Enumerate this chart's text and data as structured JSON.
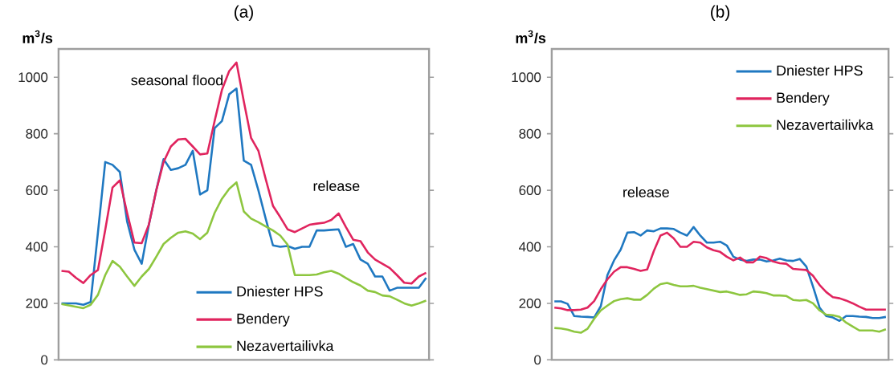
{
  "chart_data": [
    {
      "type": "line",
      "title": "(a)",
      "ylabel": "m$^{3}$/s",
      "annotations": [
        "seasonal flood",
        "release"
      ],
      "categories": [
        null,
        null,
        null,
        null,
        null,
        null,
        null,
        null,
        null,
        null,
        null,
        null,
        null,
        null,
        null,
        null,
        null,
        null,
        null,
        null,
        null,
        null,
        null,
        null,
        null,
        null,
        null,
        null,
        null,
        null,
        null,
        null,
        null,
        null,
        null,
        null,
        null,
        null,
        null,
        null,
        null,
        null,
        null,
        null,
        null,
        null,
        null,
        null,
        null,
        null,
        null
      ],
      "series": [
        {
          "name": "Dniester HPS",
          "color": "#1f78c1",
          "values": [
            200,
            200,
            200,
            195,
            205,
            450,
            700,
            690,
            665,
            490,
            390,
            340,
            480,
            600,
            710,
            672,
            678,
            690,
            740,
            585,
            600,
            820,
            845,
            940,
            960,
            705,
            690,
            600,
            500,
            405,
            400,
            403,
            393,
            400,
            400,
            458,
            458,
            460,
            462,
            400,
            410,
            355,
            340,
            295,
            295,
            245,
            255,
            255,
            255,
            255,
            290
          ]
        },
        {
          "name": "Bendery",
          "color": "#e0245e",
          "values": [
            315,
            312,
            290,
            272,
            300,
            318,
            460,
            610,
            635,
            520,
            415,
            413,
            480,
            600,
            700,
            755,
            780,
            782,
            755,
            727,
            730,
            845,
            955,
            1022,
            1052,
            915,
            785,
            740,
            640,
            545,
            505,
            462,
            452,
            465,
            478,
            482,
            485,
            495,
            518,
            470,
            425,
            420,
            380,
            355,
            340,
            325,
            300,
            273,
            270,
            295,
            308
          ]
        },
        {
          "name": "Nezavertailivka",
          "color": "#8dc63f",
          "values": [
            198,
            193,
            188,
            183,
            195,
            230,
            300,
            350,
            330,
            295,
            262,
            295,
            322,
            365,
            410,
            432,
            450,
            455,
            447,
            427,
            450,
            520,
            570,
            605,
            628,
            525,
            500,
            487,
            472,
            458,
            440,
            408,
            300,
            300,
            300,
            302,
            310,
            315,
            305,
            290,
            275,
            263,
            245,
            240,
            228,
            225,
            213,
            200,
            192,
            200,
            210
          ]
        }
      ],
      "ylim": [
        0,
        1100
      ],
      "yticks": [
        0,
        200,
        400,
        600,
        800,
        1000
      ],
      "tick_labels": "y",
      "legend": "bottom",
      "line_style": "solid",
      "marker": "none",
      "grid": false
    },
    {
      "type": "line",
      "title": "(b)",
      "ylabel": "m$^{3}$/s",
      "annotations": [
        "release"
      ],
      "categories": [
        null,
        null,
        null,
        null,
        null,
        null,
        null,
        null,
        null,
        null,
        null,
        null,
        null,
        null,
        null,
        null,
        null,
        null,
        null,
        null,
        null,
        null,
        null,
        null,
        null,
        null,
        null,
        null,
        null,
        null,
        null,
        null,
        null,
        null,
        null,
        null,
        null,
        null,
        null,
        null,
        null,
        null,
        null,
        null,
        null,
        null,
        null,
        null,
        null,
        null,
        null
      ],
      "series": [
        {
          "name": "Dniester HPS",
          "color": "#1f78c1",
          "values": [
            207,
            207,
            198,
            155,
            153,
            152,
            150,
            190,
            300,
            352,
            390,
            450,
            452,
            440,
            458,
            455,
            465,
            465,
            463,
            450,
            440,
            470,
            440,
            415,
            415,
            418,
            405,
            365,
            355,
            350,
            355,
            355,
            348,
            352,
            358,
            352,
            350,
            357,
            330,
            260,
            185,
            155,
            150,
            138,
            155,
            155,
            153,
            152,
            148,
            148,
            152
          ]
        },
        {
          "name": "Bendery",
          "color": "#e0245e",
          "values": [
            185,
            182,
            176,
            176,
            178,
            185,
            208,
            250,
            285,
            312,
            328,
            328,
            322,
            315,
            320,
            385,
            440,
            450,
            430,
            400,
            400,
            418,
            415,
            398,
            388,
            382,
            365,
            352,
            362,
            345,
            345,
            365,
            360,
            348,
            342,
            340,
            322,
            320,
            318,
            298,
            265,
            240,
            222,
            218,
            210,
            200,
            188,
            178,
            178,
            178,
            178
          ]
        },
        {
          "name": "Nezavertailivka",
          "color": "#8dc63f",
          "values": [
            113,
            111,
            107,
            100,
            96,
            110,
            145,
            175,
            192,
            208,
            215,
            218,
            213,
            213,
            230,
            252,
            268,
            272,
            265,
            260,
            260,
            262,
            255,
            250,
            245,
            240,
            242,
            236,
            230,
            232,
            242,
            240,
            236,
            228,
            228,
            226,
            212,
            210,
            212,
            200,
            175,
            160,
            158,
            152,
            132,
            118,
            104,
            104,
            104,
            100,
            108
          ]
        }
      ],
      "ylim": [
        0,
        1100
      ],
      "yticks": [
        0,
        200,
        400,
        600,
        800,
        1000
      ],
      "tick_labels": "y",
      "legend": "top right",
      "line_style": "solid",
      "marker": "none",
      "grid": false
    }
  ]
}
